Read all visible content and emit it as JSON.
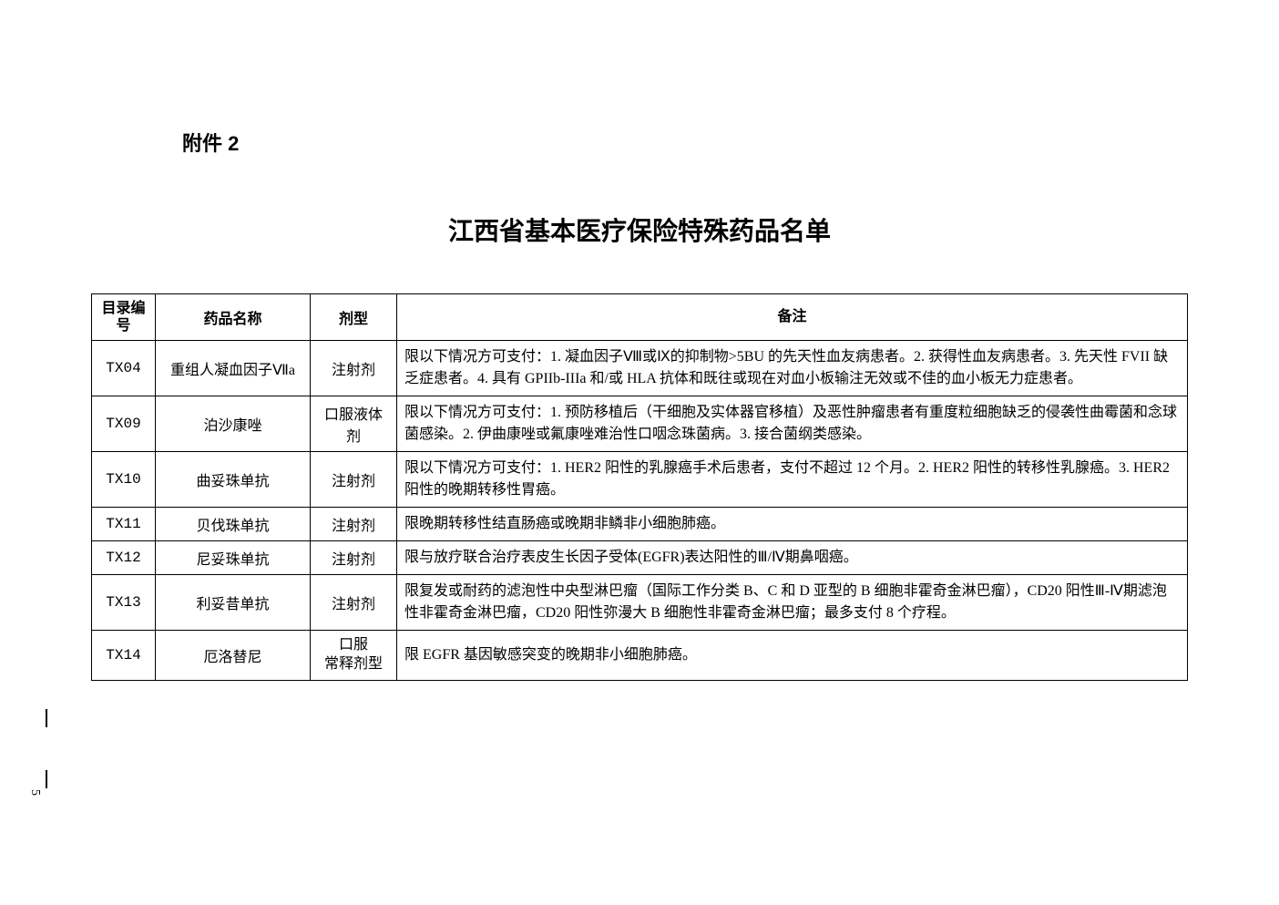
{
  "attachment_label": "附件 2",
  "title": "江西省基本医疗保险特殊药品名单",
  "headers": {
    "id": "目录编号",
    "name": "药品名称",
    "form": "剂型",
    "remark": "备注"
  },
  "rows": [
    {
      "id": "TX04",
      "name": "重组人凝血因子Ⅶa",
      "form": "注射剂",
      "remark": "限以下情况方可支付：1. 凝血因子Ⅷ或Ⅸ的抑制物>5BU 的先天性血友病患者。2. 获得性血友病患者。3. 先天性 FVII 缺乏症患者。4. 具有 GPIIb-IIIa 和/或 HLA 抗体和既往或现在对血小板输注无效或不佳的血小板无力症患者。"
    },
    {
      "id": "TX09",
      "name": "泊沙康唑",
      "form": "口服液体剂",
      "remark": "限以下情况方可支付：1. 预防移植后（干细胞及实体器官移植）及恶性肿瘤患者有重度粒细胞缺乏的侵袭性曲霉菌和念球菌感染。2. 伊曲康唑或氟康唑难治性口咽念珠菌病。3. 接合菌纲类感染。"
    },
    {
      "id": "TX10",
      "name": "曲妥珠单抗",
      "form": "注射剂",
      "remark": "限以下情况方可支付：1. HER2 阳性的乳腺癌手术后患者，支付不超过 12 个月。2. HER2 阳性的转移性乳腺癌。3. HER2 阳性的晚期转移性胃癌。"
    },
    {
      "id": "TX11",
      "name": "贝伐珠单抗",
      "form": "注射剂",
      "remark": "限晚期转移性结直肠癌或晚期非鳞非小细胞肺癌。"
    },
    {
      "id": "TX12",
      "name": "尼妥珠单抗",
      "form": "注射剂",
      "remark": "限与放疗联合治疗表皮生长因子受体(EGFR)表达阳性的Ⅲ/Ⅳ期鼻咽癌。"
    },
    {
      "id": "TX13",
      "name": "利妥昔单抗",
      "form": "注射剂",
      "remark": "限复发或耐药的滤泡性中央型淋巴瘤（国际工作分类 B、C 和 D 亚型的 B 细胞非霍奇金淋巴瘤），CD20 阳性Ⅲ-Ⅳ期滤泡性非霍奇金淋巴瘤，CD20 阳性弥漫大 B 细胞性非霍奇金淋巴瘤；最多支付 8 个疗程。"
    },
    {
      "id": "TX14",
      "name": "厄洛替尼",
      "form": "口服\n常释剂型",
      "remark": "限 EGFR 基因敏感突变的晚期非小细胞肺癌。"
    }
  ],
  "side_page": "5"
}
